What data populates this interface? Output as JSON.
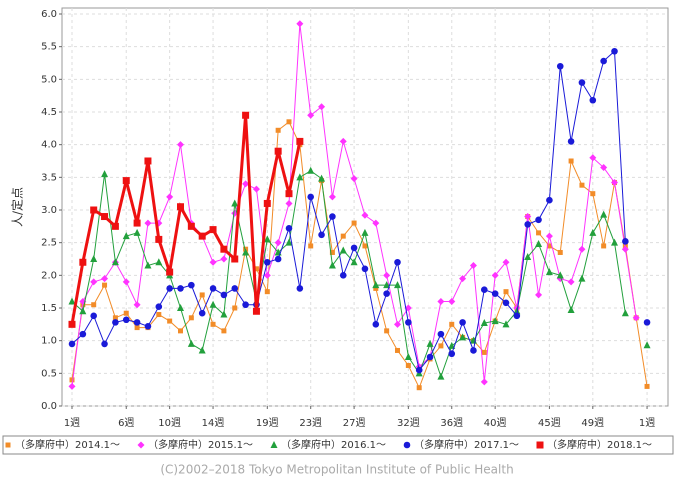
{
  "chart_data": {
    "type": "line",
    "ylabel": "人/定点",
    "footer": "(C)2002–2018 Tokyo Metropolitan Institute of Public Health",
    "categories": [
      "1週",
      null,
      null,
      null,
      null,
      "6週",
      null,
      null,
      null,
      "10週",
      null,
      null,
      null,
      "14週",
      null,
      null,
      null,
      null,
      "19週",
      null,
      null,
      null,
      "23週",
      null,
      null,
      null,
      "27週",
      null,
      null,
      null,
      null,
      "32週",
      null,
      null,
      null,
      "36週",
      null,
      null,
      null,
      "40週",
      null,
      null,
      null,
      null,
      "45週",
      null,
      null,
      null,
      "49週",
      null,
      null,
      null,
      null,
      "1週"
    ],
    "ylim": [
      0,
      6
    ],
    "yticks": [
      {
        "value": 0,
        "label": "0.0"
      },
      0.5,
      {
        "value": 1,
        "label": "1.0"
      },
      1.5,
      {
        "value": 2,
        "label": "2.0"
      },
      2.5,
      {
        "value": 3,
        "label": "3.0"
      },
      3.5,
      {
        "value": 4,
        "label": "4.0"
      },
      4.5,
      {
        "value": 5,
        "label": "5.0"
      },
      5.5,
      {
        "value": 6,
        "label": "6.0"
      }
    ],
    "grid": true,
    "series": [
      {
        "name": "（多摩府中）2014.1～",
        "color": "#f28c28",
        "marker": "square",
        "values": [
          0.4,
          1.55,
          1.55,
          1.85,
          1.35,
          1.42,
          1.2,
          1.2,
          1.4,
          1.3,
          1.15,
          1.35,
          1.7,
          1.25,
          1.15,
          1.5,
          2.4,
          2.1,
          1.75,
          4.22,
          4.35,
          4.0,
          2.45,
          3.45,
          2.35,
          2.6,
          2.8,
          2.45,
          1.8,
          1.15,
          0.85,
          0.62,
          0.28,
          0.72,
          0.92,
          1.25,
          1.05,
          1.0,
          0.82,
          1.3,
          1.75,
          1.5,
          2.9,
          2.65,
          2.45,
          2.35,
          3.75,
          3.38,
          3.25,
          2.45,
          3.42,
          2.45,
          1.35,
          0.3
        ]
      },
      {
        "name": "（多摩府中）2015.1～",
        "color": "#ff33ff",
        "marker": "diamond",
        "values": [
          0.3,
          1.6,
          1.9,
          1.95,
          2.2,
          1.9,
          1.55,
          2.8,
          2.8,
          3.2,
          4.0,
          2.8,
          2.6,
          2.2,
          2.25,
          2.95,
          3.4,
          3.32,
          2.0,
          2.5,
          3.1,
          5.85,
          4.45,
          4.58,
          3.2,
          4.05,
          3.48,
          2.92,
          2.8,
          2.0,
          1.25,
          1.5,
          0.6,
          0.75,
          1.6,
          1.6,
          1.95,
          2.15,
          0.37,
          2.0,
          2.2,
          1.5,
          2.9,
          1.7,
          2.6,
          1.95,
          1.9,
          2.4,
          3.8,
          3.65,
          3.42,
          2.4,
          1.35,
          null
        ]
      },
      {
        "name": "（多摩府中）2016.1～",
        "color": "#22a03c",
        "marker": "triangle",
        "values": [
          1.6,
          1.45,
          2.25,
          3.55,
          2.2,
          2.6,
          2.65,
          2.15,
          2.2,
          2.0,
          1.5,
          0.95,
          0.85,
          1.55,
          1.4,
          3.1,
          2.35,
          1.6,
          2.55,
          2.35,
          2.5,
          3.5,
          3.6,
          3.48,
          2.15,
          2.38,
          2.2,
          2.65,
          1.85,
          1.85,
          1.85,
          0.75,
          0.5,
          0.95,
          0.45,
          0.92,
          1.05,
          1.0,
          1.27,
          1.3,
          1.25,
          1.45,
          2.28,
          2.48,
          2.05,
          2.0,
          1.47,
          1.95,
          2.65,
          2.93,
          2.5,
          1.42,
          null,
          0.93
        ]
      },
      {
        "name": "（多摩府中）2017.1～",
        "color": "#1a1ad8",
        "marker": "circle",
        "values": [
          0.95,
          1.1,
          1.38,
          0.95,
          1.28,
          1.32,
          1.28,
          1.22,
          1.52,
          1.8,
          1.8,
          1.85,
          1.42,
          1.8,
          1.7,
          1.8,
          1.55,
          1.55,
          2.2,
          2.25,
          2.72,
          1.8,
          3.2,
          2.62,
          2.9,
          2.0,
          2.42,
          2.1,
          1.25,
          1.72,
          2.2,
          1.28,
          0.55,
          0.75,
          1.1,
          0.8,
          1.28,
          0.85,
          1.78,
          1.72,
          1.58,
          1.38,
          2.78,
          2.85,
          3.15,
          5.2,
          4.05,
          4.95,
          4.68,
          5.28,
          5.43,
          2.52,
          null,
          1.28
        ]
      },
      {
        "name": "（多摩府中）2018.1～",
        "color": "#ee1111",
        "marker": "bigsquare",
        "values": [
          1.25,
          2.2,
          3.0,
          2.9,
          2.75,
          3.45,
          2.8,
          3.75,
          2.55,
          2.05,
          3.05,
          2.75,
          2.6,
          2.7,
          2.4,
          2.25,
          4.45,
          1.45,
          3.1,
          3.9,
          3.25,
          4.05,
          null,
          null,
          null,
          null,
          null,
          null,
          null,
          null,
          null,
          null,
          null,
          null,
          null,
          null,
          null,
          null,
          null,
          null,
          null,
          null,
          null,
          null,
          null,
          null,
          null,
          null,
          null,
          null,
          null,
          null,
          null,
          null
        ]
      }
    ]
  }
}
